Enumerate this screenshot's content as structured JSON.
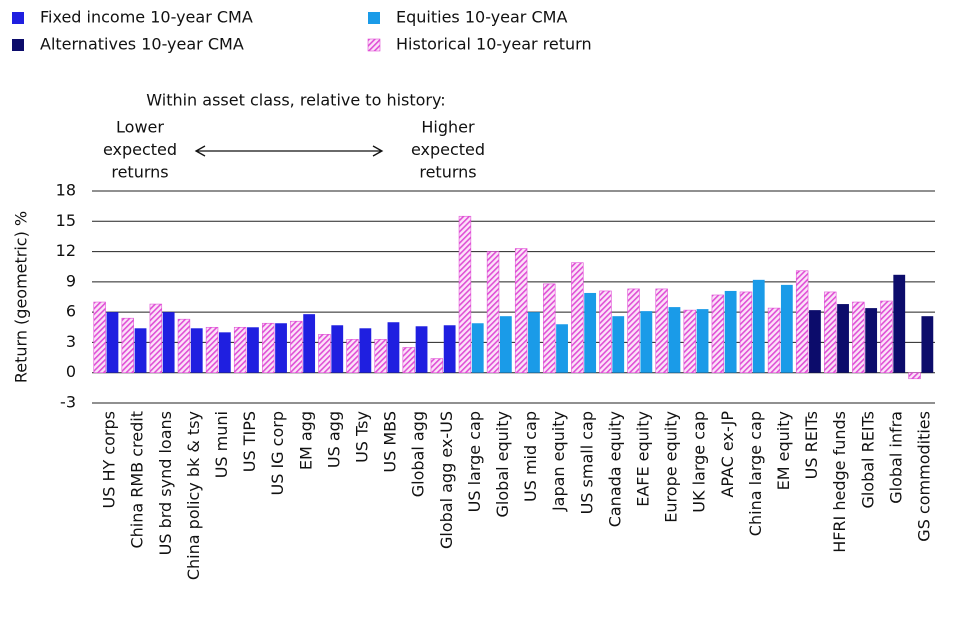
{
  "chart_data": {
    "type": "bar",
    "annotations": {
      "heading": "Within asset class, relative to history:",
      "lower": [
        "Lower",
        "expected",
        "returns"
      ],
      "higher": [
        "Higher",
        "expected",
        "returns"
      ]
    },
    "y_label": "Return (geometric) %",
    "categories": [
      "US HY corps",
      "China RMB credit",
      "US brd synd loans",
      "China policy bk & tsy",
      "US muni",
      "US TIPS",
      "US IG corp",
      "EM agg",
      "US agg",
      "US Tsy",
      "US MBS",
      "Global agg",
      "Global agg ex-US",
      "US large cap",
      "Global equity",
      "US mid cap",
      "Japan equity",
      "US small cap",
      "Canada equity",
      "EAFE equity",
      "Europe equity",
      "UK large cap",
      "APAC ex-JP",
      "China large cap",
      "EM equity",
      "US REITs",
      "HFRI hedge funds",
      "Global REITs",
      "Global infra",
      "GS commodities"
    ],
    "series": [
      {
        "name": "Fixed income 10-year CMA",
        "color": "#1f1fe0",
        "values": [
          6.0,
          4.4,
          6.0,
          4.4,
          4.0,
          4.5,
          4.9,
          5.8,
          4.7,
          4.4,
          5.0,
          4.6,
          4.7,
          null,
          null,
          null,
          null,
          null,
          null,
          null,
          null,
          null,
          null,
          null,
          null,
          null,
          null,
          null,
          null,
          null
        ]
      },
      {
        "name": "Equities 10-year CMA",
        "color": "#1a9be8",
        "values": [
          null,
          null,
          null,
          null,
          null,
          null,
          null,
          null,
          null,
          null,
          null,
          null,
          null,
          4.9,
          5.6,
          6.0,
          4.8,
          7.9,
          5.6,
          6.1,
          6.5,
          6.3,
          8.1,
          9.2,
          8.7,
          null,
          null,
          null,
          null,
          null
        ]
      },
      {
        "name": "Alternatives 10-year CMA",
        "color": "#0c0c6b",
        "values": [
          null,
          null,
          null,
          null,
          null,
          null,
          null,
          null,
          null,
          null,
          null,
          null,
          null,
          null,
          null,
          null,
          null,
          null,
          null,
          null,
          null,
          null,
          null,
          null,
          null,
          6.2,
          6.8,
          6.4,
          9.7,
          5.6
        ]
      },
      {
        "name": "Historical 10-year return",
        "color": "#e04fd6",
        "values": [
          7.0,
          5.4,
          6.8,
          5.3,
          4.5,
          4.5,
          4.9,
          5.1,
          3.8,
          3.3,
          3.3,
          2.5,
          1.4,
          15.5,
          12.0,
          12.3,
          8.8,
          10.9,
          8.1,
          8.3,
          8.3,
          6.2,
          7.7,
          8.0,
          6.4,
          10.1,
          8.0,
          7.0,
          7.1,
          -0.6
        ]
      }
    ],
    "ylim": [
      -3,
      18
    ],
    "yticks": [
      -3,
      0,
      3,
      6,
      9,
      12,
      15,
      18
    ],
    "grid": true
  }
}
